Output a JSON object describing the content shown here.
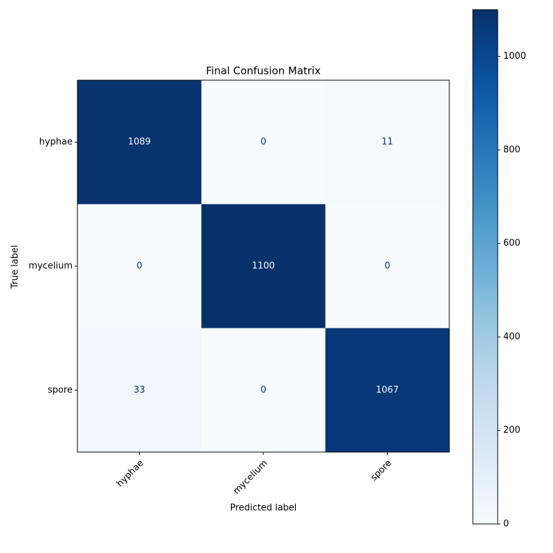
{
  "chart_data": {
    "type": "heatmap",
    "title": "Final Confusion Matrix",
    "x_label": "Predicted label",
    "y_label": "True label",
    "x_categories": [
      "hyphae",
      "mycelium",
      "spore"
    ],
    "y_categories": [
      "hyphae",
      "mycelium",
      "spore"
    ],
    "values": [
      [
        1089,
        0,
        11
      ],
      [
        0,
        1100,
        0
      ],
      [
        33,
        0,
        1067
      ]
    ],
    "colormap": "Blues",
    "clim": [
      0,
      1100
    ],
    "cticks": [
      0,
      200,
      400,
      600,
      800,
      1000
    ]
  }
}
